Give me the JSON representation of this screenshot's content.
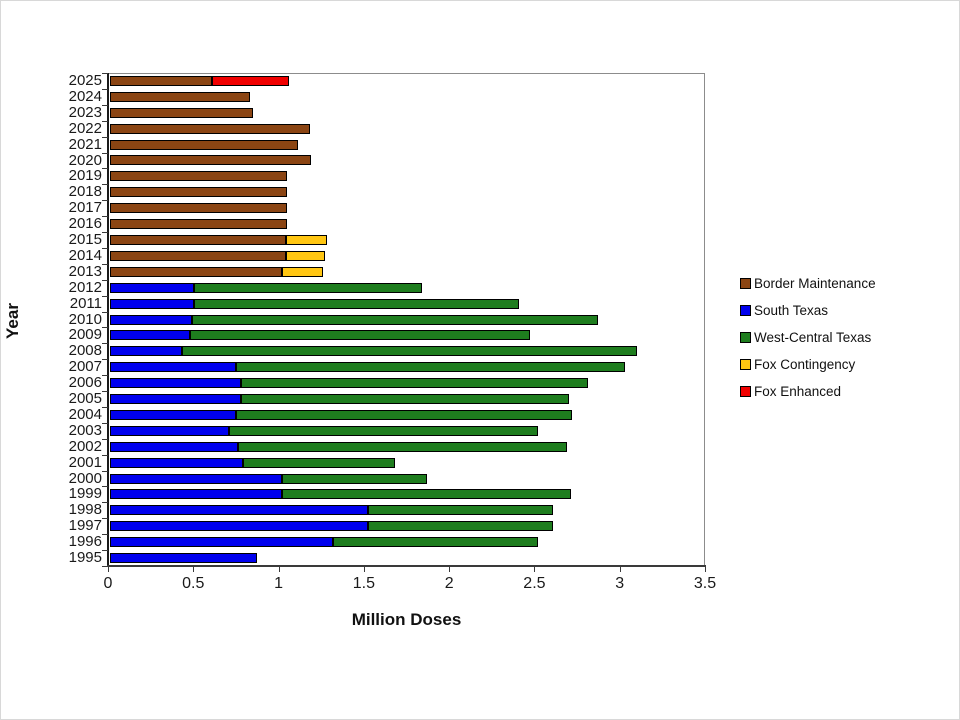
{
  "page": {
    "background": "#ffffff"
  },
  "chart_data": {
    "type": "bar",
    "orientation": "horizontal",
    "stacked": true,
    "title": "",
    "xlabel": "Million Doses",
    "ylabel": "Year",
    "xlim": [
      0,
      3.5
    ],
    "xticks": [
      0,
      0.5,
      1,
      1.5,
      2,
      2.5,
      3,
      3.5
    ],
    "xtick_labels": [
      "0",
      "0.5",
      "1",
      "1.5",
      "2",
      "2.5",
      "3",
      "3.5"
    ],
    "grid": false,
    "legend_position": "right",
    "categories": [
      "2025",
      "2024",
      "2023",
      "2022",
      "2021",
      "2020",
      "2019",
      "2018",
      "2017",
      "2016",
      "2015",
      "2014",
      "2013",
      "2012",
      "2011",
      "2010",
      "2009",
      "2008",
      "2007",
      "2006",
      "2005",
      "2004",
      "2003",
      "2002",
      "2001",
      "2000",
      "1999",
      "1998",
      "1997",
      "1996",
      "1995"
    ],
    "series": [
      {
        "name": "Border Maintenance",
        "color": "#8B4513",
        "values": [
          0.6,
          0.82,
          0.84,
          1.17,
          1.1,
          1.18,
          1.04,
          1.04,
          1.04,
          1.04,
          1.03,
          1.03,
          1.01,
          0,
          0,
          0,
          0,
          0,
          0,
          0,
          0,
          0,
          0,
          0,
          0,
          0,
          0,
          0,
          0,
          0,
          0
        ]
      },
      {
        "name": "South Texas",
        "color": "#0000EE",
        "values": [
          0,
          0,
          0,
          0,
          0,
          0,
          0,
          0,
          0,
          0,
          0,
          0,
          0,
          0.49,
          0.49,
          0.48,
          0.47,
          0.42,
          0.74,
          0.77,
          0.77,
          0.74,
          0.7,
          0.75,
          0.78,
          1.01,
          1.01,
          1.51,
          1.51,
          1.31,
          0.86
        ]
      },
      {
        "name": "West-Central Texas",
        "color": "#1E7D1E",
        "values": [
          0,
          0,
          0,
          0,
          0,
          0,
          0,
          0,
          0,
          0,
          0,
          0,
          0,
          1.34,
          1.91,
          2.38,
          1.99,
          2.67,
          2.28,
          2.03,
          1.92,
          1.97,
          1.81,
          1.93,
          0.89,
          0.85,
          1.69,
          1.09,
          1.09,
          1.2,
          0
        ]
      },
      {
        "name": "Fox Contingency",
        "color": "#FFC612",
        "values": [
          0,
          0,
          0,
          0,
          0,
          0,
          0,
          0,
          0,
          0,
          0.24,
          0.23,
          0.24,
          0,
          0,
          0,
          0,
          0,
          0,
          0,
          0,
          0,
          0,
          0,
          0,
          0,
          0,
          0,
          0,
          0,
          0
        ]
      },
      {
        "name": "Fox Enhanced",
        "color": "#F00000",
        "values": [
          0.45,
          0,
          0,
          0,
          0,
          0,
          0,
          0,
          0,
          0,
          0,
          0,
          0,
          0,
          0,
          0,
          0,
          0,
          0,
          0,
          0,
          0,
          0,
          0,
          0,
          0,
          0,
          0,
          0,
          0,
          0
        ]
      }
    ]
  }
}
